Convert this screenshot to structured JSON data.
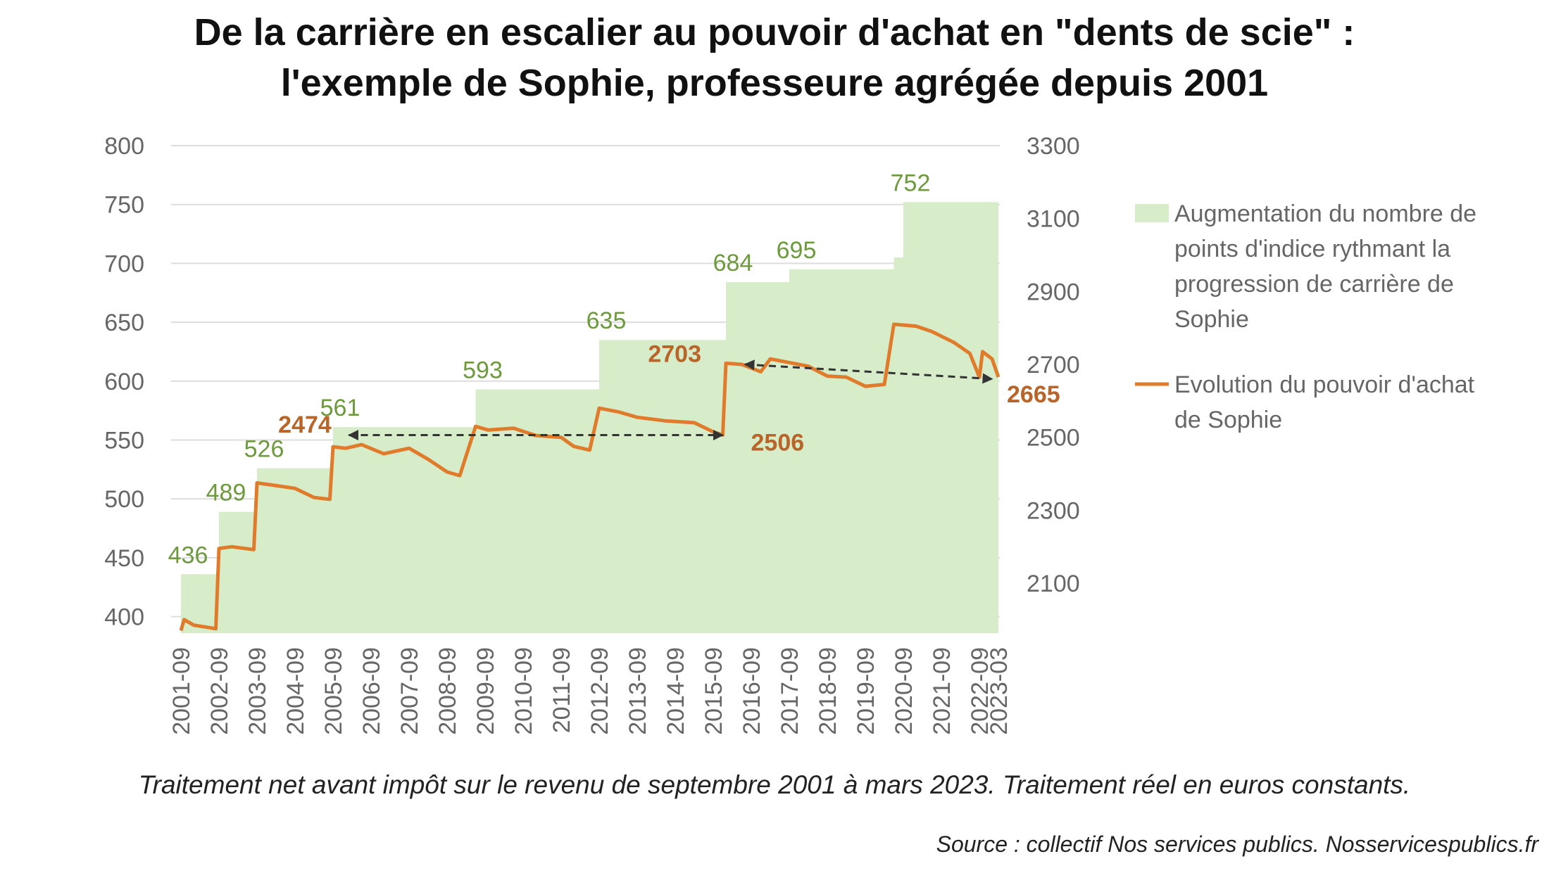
{
  "chart_data": {
    "type": "area+line",
    "title_lines": [
      "De la carrière en escalier au pouvoir d'achat en \"dents de scie\" :",
      "l'exemple de Sophie, professeure agrégée depuis 2001"
    ],
    "left_axis": {
      "ticks": [
        400,
        450,
        500,
        550,
        600,
        650,
        700,
        750,
        800
      ],
      "range": [
        386,
        800
      ]
    },
    "right_axis": {
      "ticks": [
        2100,
        2300,
        2500,
        2700,
        2900,
        3100,
        3300
      ],
      "range": [
        1963,
        3300
      ]
    },
    "x_axis": {
      "start": "2001-09",
      "end": "2023-03",
      "tick_labels": [
        "2001-09",
        "2002-09",
        "2003-09",
        "2004-09",
        "2005-09",
        "2006-09",
        "2007-09",
        "2008-09",
        "2009-09",
        "2010-09",
        "2011-09",
        "2012-09",
        "2013-09",
        "2014-09",
        "2015-09",
        "2016-09",
        "2017-09",
        "2018-09",
        "2019-09",
        "2020-09",
        "2021-09",
        "2022-09",
        "2023-03"
      ]
    },
    "index_points": {
      "name": "Augmentation du nombre de points d'indice rythmant la progression de carrière de Sophie",
      "steps": [
        {
          "from": "2001-09",
          "value": 436
        },
        {
          "from": "2002-09",
          "value": 489
        },
        {
          "from": "2003-09",
          "value": 526
        },
        {
          "from": "2005-09",
          "value": 561
        },
        {
          "from": "2009-06",
          "value": 593
        },
        {
          "from": "2012-09",
          "value": 635
        },
        {
          "from": "2016-01",
          "value": 684
        },
        {
          "from": "2017-09",
          "value": 695
        },
        {
          "from": "2020-06",
          "value": 705
        },
        {
          "from": "2020-09",
          "value": 752
        }
      ],
      "labels": [
        {
          "text": "436",
          "date": "2001-09",
          "value": 436
        },
        {
          "text": "489",
          "date": "2002-09",
          "value": 489
        },
        {
          "text": "526",
          "date": "2003-09",
          "value": 526
        },
        {
          "text": "561",
          "date": "2005-09",
          "value": 561
        },
        {
          "text": "593",
          "date": "2009-06",
          "value": 593
        },
        {
          "text": "635",
          "date": "2012-09",
          "value": 635
        },
        {
          "text": "684",
          "date": "2016-01",
          "value": 684
        },
        {
          "text": "695",
          "date": "2017-09",
          "value": 695
        },
        {
          "text": "752",
          "date": "2020-09",
          "value": 752
        }
      ]
    },
    "purchasing_power": {
      "name": "Evolution du pouvoir d'achat de Sophie",
      "points": [
        [
          "2001-09",
          1970
        ],
        [
          "2001-10",
          2000
        ],
        [
          "2002-01",
          1985
        ],
        [
          "2002-06",
          1978
        ],
        [
          "2002-08",
          1975
        ],
        [
          "2002-09",
          2195
        ],
        [
          "2003-01",
          2200
        ],
        [
          "2003-08",
          2192
        ],
        [
          "2003-09",
          2375
        ],
        [
          "2004-01",
          2370
        ],
        [
          "2004-09",
          2360
        ],
        [
          "2005-03",
          2335
        ],
        [
          "2005-08",
          2330
        ],
        [
          "2005-09",
          2474
        ],
        [
          "2006-01",
          2470
        ],
        [
          "2006-06",
          2480
        ],
        [
          "2007-01",
          2455
        ],
        [
          "2007-09",
          2470
        ],
        [
          "2008-03",
          2440
        ],
        [
          "2008-09",
          2405
        ],
        [
          "2009-01",
          2395
        ],
        [
          "2009-06",
          2530
        ],
        [
          "2009-10",
          2520
        ],
        [
          "2010-06",
          2525
        ],
        [
          "2011-01",
          2505
        ],
        [
          "2011-09",
          2500
        ],
        [
          "2012-01",
          2475
        ],
        [
          "2012-06",
          2465
        ],
        [
          "2012-09",
          2580
        ],
        [
          "2013-03",
          2570
        ],
        [
          "2013-09",
          2555
        ],
        [
          "2014-06",
          2545
        ],
        [
          "2015-03",
          2540
        ],
        [
          "2015-09",
          2515
        ],
        [
          "2015-12",
          2506
        ],
        [
          "2016-01",
          2703
        ],
        [
          "2016-06",
          2700
        ],
        [
          "2016-12",
          2680
        ],
        [
          "2017-03",
          2715
        ],
        [
          "2017-09",
          2705
        ],
        [
          "2018-03",
          2695
        ],
        [
          "2018-09",
          2668
        ],
        [
          "2019-03",
          2665
        ],
        [
          "2019-09",
          2640
        ],
        [
          "2020-03",
          2645
        ],
        [
          "2020-06",
          2810
        ],
        [
          "2021-01",
          2805
        ],
        [
          "2021-06",
          2790
        ],
        [
          "2022-01",
          2760
        ],
        [
          "2022-06",
          2730
        ],
        [
          "2022-09",
          2665
        ],
        [
          "2022-10",
          2735
        ],
        [
          "2023-01",
          2715
        ],
        [
          "2023-03",
          2665
        ]
      ],
      "labels": [
        {
          "text": "2474",
          "date": "2005-09",
          "value": 2474
        },
        {
          "text": "2506",
          "date": "2015-12",
          "value": 2506
        },
        {
          "text": "2703",
          "date": "2016-01",
          "value": 2703
        },
        {
          "text": "2665",
          "date": "2023-03",
          "value": 2665
        }
      ]
    },
    "arrows": [
      {
        "from": [
          "2006-02",
          2506
        ],
        "to": [
          "2015-12",
          2506
        ]
      },
      {
        "from": [
          "2016-07",
          2700
        ],
        "to": [
          "2023-01",
          2660
        ]
      }
    ],
    "legend": [
      {
        "kind": "area",
        "lines": [
          "Augmentation du nombre de",
          "points d'indice rythmant la",
          "progression de carrière de",
          "Sophie"
        ]
      },
      {
        "kind": "line",
        "lines": [
          "Evolution du pouvoir d'achat",
          "de Sophie"
        ]
      }
    ],
    "colors": {
      "area": "#d7ecc8",
      "line": "#e07b2c",
      "green_label": "#6e9a3e",
      "orange_label": "#b9652a",
      "grid": "#dddddd",
      "arrow": "#333333"
    }
  },
  "caption": "Traitement net avant impôt sur le revenu de septembre 2001 à mars 2023. Traitement réel en euros constants.",
  "source": "Source : collectif Nos services publics. Nosservicespublics.fr"
}
